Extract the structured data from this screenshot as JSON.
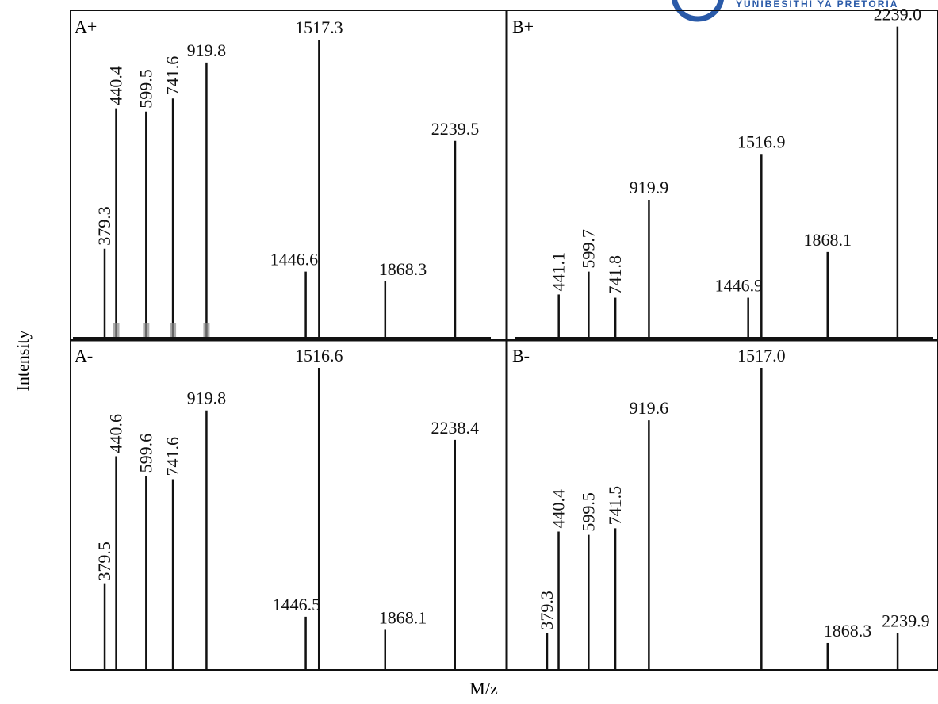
{
  "figure": {
    "ylabel": "Intensity",
    "xlabel": "M/z",
    "logo_text": "YUNIBESITHI YA PRETORIA",
    "line_color": "#111111",
    "hump_color": "#8a8a8a"
  },
  "chart_data": [
    {
      "type": "bar",
      "panel": "A+",
      "title": "A+",
      "xlabel": "M/z",
      "ylabel": "Intensity",
      "xlim": [
        0,
        2400
      ],
      "ylim": [
        0,
        100
      ],
      "grid": false,
      "legend": "none",
      "peaks": [
        {
          "x": 379.3,
          "y": 27,
          "label": "379.3"
        },
        {
          "x": 440.4,
          "y": 70,
          "label": "440.4"
        },
        {
          "x": 599.5,
          "y": 69,
          "label": "599.5"
        },
        {
          "x": 741.6,
          "y": 73,
          "label": "741.6"
        },
        {
          "x": 919.8,
          "y": 84,
          "label": "919.8"
        },
        {
          "x": 1446.6,
          "y": 20,
          "label": "1446.6"
        },
        {
          "x": 1517.3,
          "y": 91,
          "label": "1517.3"
        },
        {
          "x": 1868.3,
          "y": 17,
          "label": "1868.3"
        },
        {
          "x": 2239.5,
          "y": 60,
          "label": "2239.5"
        }
      ]
    },
    {
      "type": "bar",
      "panel": "B+",
      "title": "B+",
      "xlabel": "M/z",
      "ylabel": "Intensity",
      "xlim": [
        0,
        2400
      ],
      "ylim": [
        0,
        100
      ],
      "grid": false,
      "legend": "none",
      "peaks": [
        {
          "x": 441.1,
          "y": 13,
          "label": "441.1"
        },
        {
          "x": 599.7,
          "y": 20,
          "label": "599.7"
        },
        {
          "x": 741.8,
          "y": 12,
          "label": "741.8"
        },
        {
          "x": 919.9,
          "y": 42,
          "label": "919.9"
        },
        {
          "x": 1446.9,
          "y": 12,
          "label": "1446.9"
        },
        {
          "x": 1516.9,
          "y": 56,
          "label": "1516.9"
        },
        {
          "x": 1868.1,
          "y": 26,
          "label": "1868.1"
        },
        {
          "x": 2239.0,
          "y": 95,
          "label": "2239.0"
        }
      ]
    },
    {
      "type": "bar",
      "panel": "A-",
      "title": "A-",
      "xlabel": "M/z",
      "ylabel": "Intensity",
      "xlim": [
        0,
        2400
      ],
      "ylim": [
        0,
        100
      ],
      "grid": false,
      "legend": "none",
      "peaks": [
        {
          "x": 379.5,
          "y": 26,
          "label": "379.5"
        },
        {
          "x": 440.6,
          "y": 65,
          "label": "440.6"
        },
        {
          "x": 599.6,
          "y": 59,
          "label": "599.6"
        },
        {
          "x": 741.6,
          "y": 58,
          "label": "741.6"
        },
        {
          "x": 919.8,
          "y": 79,
          "label": "919.8"
        },
        {
          "x": 1446.5,
          "y": 16,
          "label": "1446.5"
        },
        {
          "x": 1516.6,
          "y": 92,
          "label": "1516.6"
        },
        {
          "x": 1868.1,
          "y": 12,
          "label": "1868.1"
        },
        {
          "x": 2238.4,
          "y": 70,
          "label": "2238.4"
        }
      ]
    },
    {
      "type": "bar",
      "panel": "B-",
      "title": "B-",
      "xlabel": "M/z",
      "ylabel": "Intensity",
      "xlim": [
        0,
        2400
      ],
      "ylim": [
        0,
        100
      ],
      "grid": false,
      "legend": "none",
      "peaks": [
        {
          "x": 379.3,
          "y": 11,
          "label": "379.3"
        },
        {
          "x": 440.4,
          "y": 42,
          "label": "440.4"
        },
        {
          "x": 599.5,
          "y": 41,
          "label": "599.5"
        },
        {
          "x": 741.5,
          "y": 43,
          "label": "741.5"
        },
        {
          "x": 919.6,
          "y": 76,
          "label": "919.6"
        },
        {
          "x": 1517.0,
          "y": 92,
          "label": "1517.0"
        },
        {
          "x": 1868.3,
          "y": 8,
          "label": "1868.3"
        },
        {
          "x": 2239.9,
          "y": 11,
          "label": "2239.9"
        }
      ]
    }
  ]
}
